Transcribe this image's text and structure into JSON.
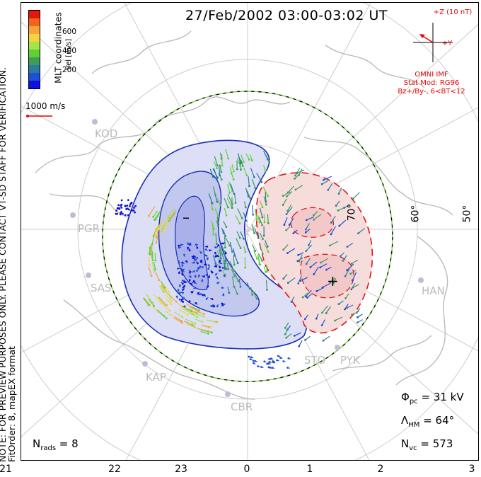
{
  "title": "27/Feb/2002 03:00-03:02 UT",
  "side_note": {
    "line1": "NOTE: FOR PREVIEW PURPOSES ONLY. PLEASE CONTACT VT-SD STAFF FOR VERIFICATION.",
    "line2": "FitOrder: 8, mapEX format"
  },
  "mlt_label": "MLT coordinates",
  "colorbar": {
    "label": "Vel [m/s]",
    "ticks": [
      "600",
      "400",
      "200"
    ],
    "colors": [
      "#e8150f",
      "#f2641c",
      "#f7a23a",
      "#f2d440",
      "#a6e24a",
      "#5ed234",
      "#3f9c5a",
      "#2b7aa0",
      "#1f4fd6",
      "#1010e0"
    ]
  },
  "scale_vector_label": "1000 m/s",
  "stations": [
    "KOD",
    "PGR",
    "SAS",
    "KAP",
    "CBR",
    "STO",
    "PYK",
    "HAN"
  ],
  "latitude_labels": [
    "70°",
    "60°",
    "50°"
  ],
  "imf": {
    "bz_label": "+Z (10 nT)",
    "by_label": "+Y",
    "source": "OMNI IMF",
    "model1": "Stat Mod: RG96",
    "model2": "Bz+/By-, 6<BT<12"
  },
  "stats": {
    "phi_symbol": "Φ",
    "phi_sub": "pc",
    "phi_value": " = 31 kV",
    "lambda_symbol": "Λ",
    "lambda_sub": "HM",
    "lambda_value": " = 64°",
    "nvc_symbol": "N",
    "nvc_sub": "vc",
    "nvc_value": " = 573",
    "nrads_symbol": "N",
    "nrads_sub": "rads",
    "nrads_value": " = 8"
  },
  "mlt_ticks": [
    "21",
    "22",
    "23",
    "0",
    "1",
    "2",
    "3"
  ],
  "contour_signs": {
    "minus": "–",
    "plus": "+"
  },
  "potential_cells": {
    "negative_color": "#1a2fb8",
    "positive_color": "#d91a1a"
  }
}
